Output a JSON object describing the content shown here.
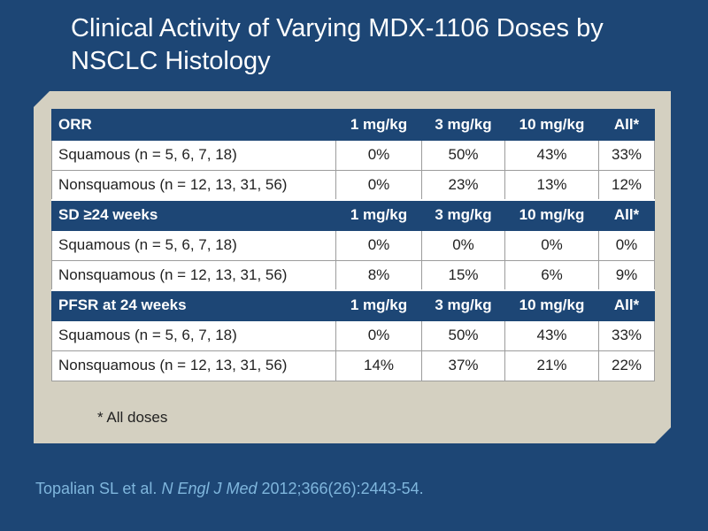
{
  "title": "Clinical Activity of Varying MDX-1106 Doses by NSCLC Histology",
  "colors": {
    "background": "#1d4675",
    "panel": "#d4d0c1",
    "header_row": "#1d4675",
    "citation": "#7fb6dd"
  },
  "dose_columns": [
    "1 mg/kg",
    "3 mg/kg",
    "10 mg/kg",
    "All*"
  ],
  "sections": [
    {
      "header": "ORR",
      "rows": [
        {
          "label": "Squamous (n = 5, 6, 7, 18)",
          "values": [
            "0%",
            "50%",
            "43%",
            "33%"
          ]
        },
        {
          "label": "Nonsquamous (n = 12, 13, 31, 56)",
          "values": [
            "0%",
            "23%",
            "13%",
            "12%"
          ]
        }
      ]
    },
    {
      "header": "SD ≥24 weeks",
      "rows": [
        {
          "label": "Squamous (n = 5, 6, 7, 18)",
          "values": [
            "0%",
            "0%",
            "0%",
            "0%"
          ]
        },
        {
          "label": "Nonsquamous (n = 12, 13, 31, 56)",
          "values": [
            "8%",
            "15%",
            "6%",
            "9%"
          ]
        }
      ]
    },
    {
      "header": "PFSR at 24 weeks",
      "rows": [
        {
          "label": "Squamous (n = 5, 6, 7, 18)",
          "values": [
            "0%",
            "50%",
            "43%",
            "33%"
          ]
        },
        {
          "label": "Nonsquamous (n = 12, 13, 31, 56)",
          "values": [
            "14%",
            "37%",
            "21%",
            "22%"
          ]
        }
      ]
    }
  ],
  "footnote": "* All doses",
  "citation": {
    "authors": "Topalian SL et al. ",
    "journal": "N Engl J Med",
    "details": " 2012;366(26):2443-54."
  }
}
